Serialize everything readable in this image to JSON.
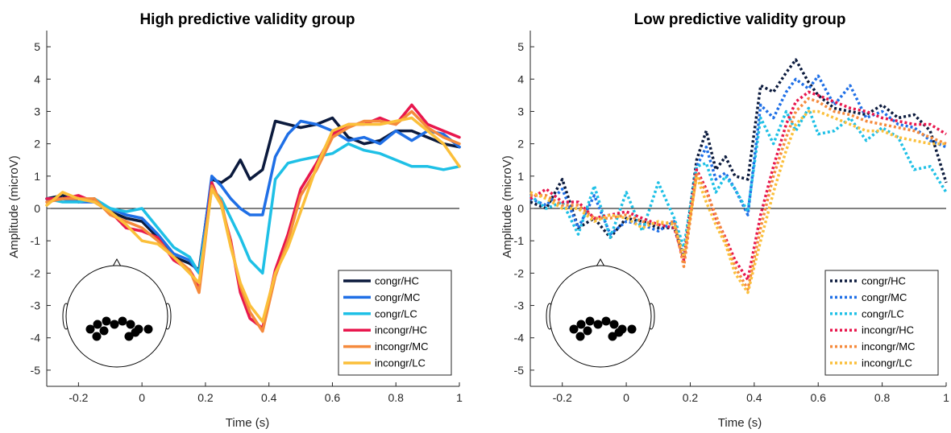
{
  "chart_data": [
    {
      "type": "line",
      "title": "High predictive validity group",
      "xlabel": "Time (s)",
      "ylabel": "Amplitude (microV)",
      "xlim": [
        -0.3,
        1.0
      ],
      "ylim": [
        -5.5,
        5.5
      ],
      "xticks": [
        -0.2,
        0,
        0.2,
        0.4,
        0.6,
        0.8,
        1
      ],
      "xtick_labels": [
        "-0.2",
        "0",
        "0.2",
        "0.4",
        "0.6",
        "0.8",
        "1"
      ],
      "yticks": [
        -5,
        -4,
        -3,
        -2,
        -1,
        0,
        1,
        2,
        3,
        4,
        5
      ],
      "ytick_labels": [
        "-5",
        "-4",
        "-3",
        "-2",
        "-1",
        "0",
        "1",
        "2",
        "3",
        "4",
        "5"
      ],
      "line_style": "solid",
      "legend_position": "bottom-right",
      "zero_line": true,
      "head_icon": "scalp-electrode-map-icon",
      "x": [
        -0.3,
        -0.25,
        -0.2,
        -0.15,
        -0.1,
        -0.05,
        0,
        0.05,
        0.1,
        0.15,
        0.18,
        0.22,
        0.25,
        0.28,
        0.31,
        0.34,
        0.38,
        0.42,
        0.46,
        0.5,
        0.55,
        0.6,
        0.65,
        0.7,
        0.75,
        0.8,
        0.85,
        0.9,
        0.95,
        1.0
      ],
      "series": [
        {
          "name": "congr/HC",
          "color": "#0b1a3d",
          "values": [
            0.3,
            0.4,
            0.2,
            0.3,
            -0.1,
            -0.3,
            -0.4,
            -0.9,
            -1.5,
            -1.7,
            -1.9,
            0.9,
            0.8,
            1.0,
            1.5,
            0.9,
            1.2,
            2.7,
            2.6,
            2.5,
            2.6,
            2.8,
            2.2,
            2.0,
            2.1,
            2.4,
            2.4,
            2.2,
            2.0,
            1.9
          ]
        },
        {
          "name": "congr/MC",
          "color": "#1f6fe6",
          "values": [
            0.3,
            0.3,
            0.2,
            0.2,
            0.0,
            -0.2,
            -0.3,
            -0.8,
            -1.4,
            -1.6,
            -2.0,
            1.0,
            0.7,
            0.3,
            0.0,
            -0.2,
            -0.2,
            1.6,
            2.3,
            2.7,
            2.6,
            2.4,
            2.1,
            2.2,
            2.0,
            2.4,
            2.1,
            2.4,
            2.3,
            1.9
          ]
        },
        {
          "name": "congr/LC",
          "color": "#1ec0e6",
          "values": [
            0.3,
            0.2,
            0.2,
            0.3,
            0.0,
            -0.1,
            0.0,
            -0.6,
            -1.2,
            -1.5,
            -2.0,
            0.6,
            0.3,
            -0.3,
            -0.9,
            -1.6,
            -2.0,
            0.9,
            1.4,
            1.5,
            1.6,
            1.7,
            2.0,
            1.8,
            1.7,
            1.5,
            1.3,
            1.3,
            1.2,
            1.3
          ]
        },
        {
          "name": "incongr/HC",
          "color": "#e8174d",
          "values": [
            0.3,
            0.3,
            0.4,
            0.2,
            -0.1,
            -0.6,
            -0.7,
            -0.9,
            -1.6,
            -1.9,
            -2.4,
            0.8,
            0.1,
            -1.0,
            -2.6,
            -3.4,
            -3.7,
            -1.9,
            -0.8,
            0.6,
            1.4,
            2.3,
            2.6,
            2.6,
            2.8,
            2.6,
            3.2,
            2.6,
            2.4,
            2.2
          ]
        },
        {
          "name": "incongr/MC",
          "color": "#f58a3c",
          "values": [
            0.2,
            0.3,
            0.3,
            0.3,
            -0.2,
            -0.4,
            -0.6,
            -1.0,
            -1.5,
            -1.9,
            -2.6,
            0.7,
            0.2,
            -1.1,
            -2.4,
            -3.2,
            -3.8,
            -2.1,
            -1.0,
            0.4,
            1.2,
            2.2,
            2.5,
            2.7,
            2.7,
            2.6,
            3.0,
            2.5,
            2.2,
            2.0
          ]
        },
        {
          "name": "incongr/LC",
          "color": "#fbbf3a",
          "values": [
            0.1,
            0.5,
            0.3,
            0.2,
            -0.1,
            -0.5,
            -1.0,
            -1.1,
            -1.5,
            -2.0,
            -2.3,
            0.6,
            0.1,
            -1.2,
            -2.3,
            -3.0,
            -3.5,
            -2.0,
            -1.2,
            -0.1,
            1.3,
            2.4,
            2.6,
            2.6,
            2.6,
            2.7,
            2.8,
            2.4,
            2.0,
            1.3
          ]
        }
      ]
    },
    {
      "type": "line",
      "title": "Low predictive validity group",
      "xlabel": "Time (s)",
      "ylabel": "Amplitude (microV)",
      "xlim": [
        -0.3,
        1.0
      ],
      "ylim": [
        -5.5,
        5.5
      ],
      "xticks": [
        -0.2,
        0,
        0.2,
        0.4,
        0.6,
        0.8,
        1
      ],
      "xtick_labels": [
        "-0.2",
        "0",
        "0.2",
        "0.4",
        "0.6",
        "0.8",
        "1"
      ],
      "yticks": [
        -5,
        -4,
        -3,
        -2,
        -1,
        0,
        1,
        2,
        3,
        4,
        5
      ],
      "ytick_labels": [
        "-5",
        "-4",
        "-3",
        "-2",
        "-1",
        "0",
        "1",
        "2",
        "3",
        "4",
        "5"
      ],
      "line_style": "dotted",
      "legend_position": "bottom-right",
      "zero_line": true,
      "head_icon": "scalp-electrode-map-icon",
      "x": [
        -0.3,
        -0.25,
        -0.2,
        -0.15,
        -0.1,
        -0.05,
        0,
        0.05,
        0.1,
        0.15,
        0.18,
        0.22,
        0.25,
        0.28,
        0.31,
        0.34,
        0.38,
        0.42,
        0.46,
        0.5,
        0.53,
        0.57,
        0.6,
        0.65,
        0.7,
        0.75,
        0.8,
        0.85,
        0.9,
        0.95,
        1.0
      ],
      "series": [
        {
          "name": "congr/HC",
          "color": "#0b1a3d",
          "values": [
            0.2,
            0.0,
            0.9,
            -0.6,
            -0.3,
            -0.9,
            -0.3,
            -0.4,
            -0.6,
            -0.6,
            -1.5,
            1.5,
            2.4,
            1.2,
            1.6,
            1.0,
            0.9,
            3.8,
            3.6,
            4.2,
            4.6,
            3.9,
            3.5,
            3.1,
            3.0,
            2.9,
            3.2,
            2.8,
            2.9,
            2.4,
            0.8
          ]
        },
        {
          "name": "congr/MC",
          "color": "#1f6fe6",
          "values": [
            0.3,
            0.1,
            0.6,
            -0.6,
            0.4,
            -0.8,
            -0.4,
            -0.5,
            -0.7,
            -0.4,
            -1.5,
            1.3,
            1.9,
            0.9,
            1.1,
            0.6,
            -0.2,
            3.2,
            2.8,
            3.6,
            4.0,
            3.7,
            4.1,
            3.2,
            3.8,
            2.8,
            3.0,
            2.6,
            2.5,
            2.1,
            1.9
          ]
        },
        {
          "name": "congr/LC",
          "color": "#1ec0e6",
          "values": [
            0.4,
            0.0,
            0.2,
            -0.8,
            0.7,
            -0.9,
            0.5,
            -0.7,
            0.8,
            -0.3,
            -1.2,
            1.3,
            1.4,
            0.5,
            1.0,
            0.6,
            -0.1,
            2.8,
            2.0,
            3.0,
            2.4,
            3.1,
            2.3,
            2.4,
            2.8,
            2.1,
            2.5,
            2.2,
            1.2,
            1.3,
            0.5
          ]
        },
        {
          "name": "incongr/HC",
          "color": "#e8174d",
          "values": [
            0.3,
            0.6,
            0.2,
            0.2,
            -0.3,
            -0.2,
            -0.1,
            -0.3,
            -0.5,
            -0.6,
            -1.6,
            1.2,
            0.6,
            -0.3,
            -0.9,
            -1.6,
            -2.2,
            -0.2,
            1.3,
            2.6,
            3.3,
            3.6,
            3.5,
            3.3,
            3.1,
            3.0,
            2.8,
            2.7,
            2.6,
            2.6,
            2.3
          ]
        },
        {
          "name": "incongr/MC",
          "color": "#f58a3c",
          "values": [
            0.4,
            0.4,
            0.1,
            0.1,
            -0.3,
            -0.3,
            -0.2,
            -0.4,
            -0.5,
            -0.4,
            -1.8,
            1.1,
            0.5,
            -0.2,
            -1.0,
            -1.8,
            -2.5,
            -0.6,
            1.0,
            2.2,
            3.0,
            3.4,
            3.3,
            3.0,
            2.9,
            2.7,
            2.6,
            2.5,
            2.4,
            2.2,
            2.0
          ]
        },
        {
          "name": "incongr/LC",
          "color": "#fbbf3a",
          "values": [
            0.5,
            0.3,
            0.0,
            0.0,
            -0.4,
            -0.2,
            -0.3,
            -0.6,
            -0.4,
            -0.5,
            -1.5,
            1.0,
            0.2,
            -0.5,
            -1.1,
            -2.0,
            -2.6,
            -1.0,
            0.5,
            1.8,
            2.6,
            3.0,
            3.0,
            2.8,
            2.6,
            2.4,
            2.4,
            2.2,
            2.1,
            2.0,
            2.0
          ]
        }
      ]
    }
  ]
}
